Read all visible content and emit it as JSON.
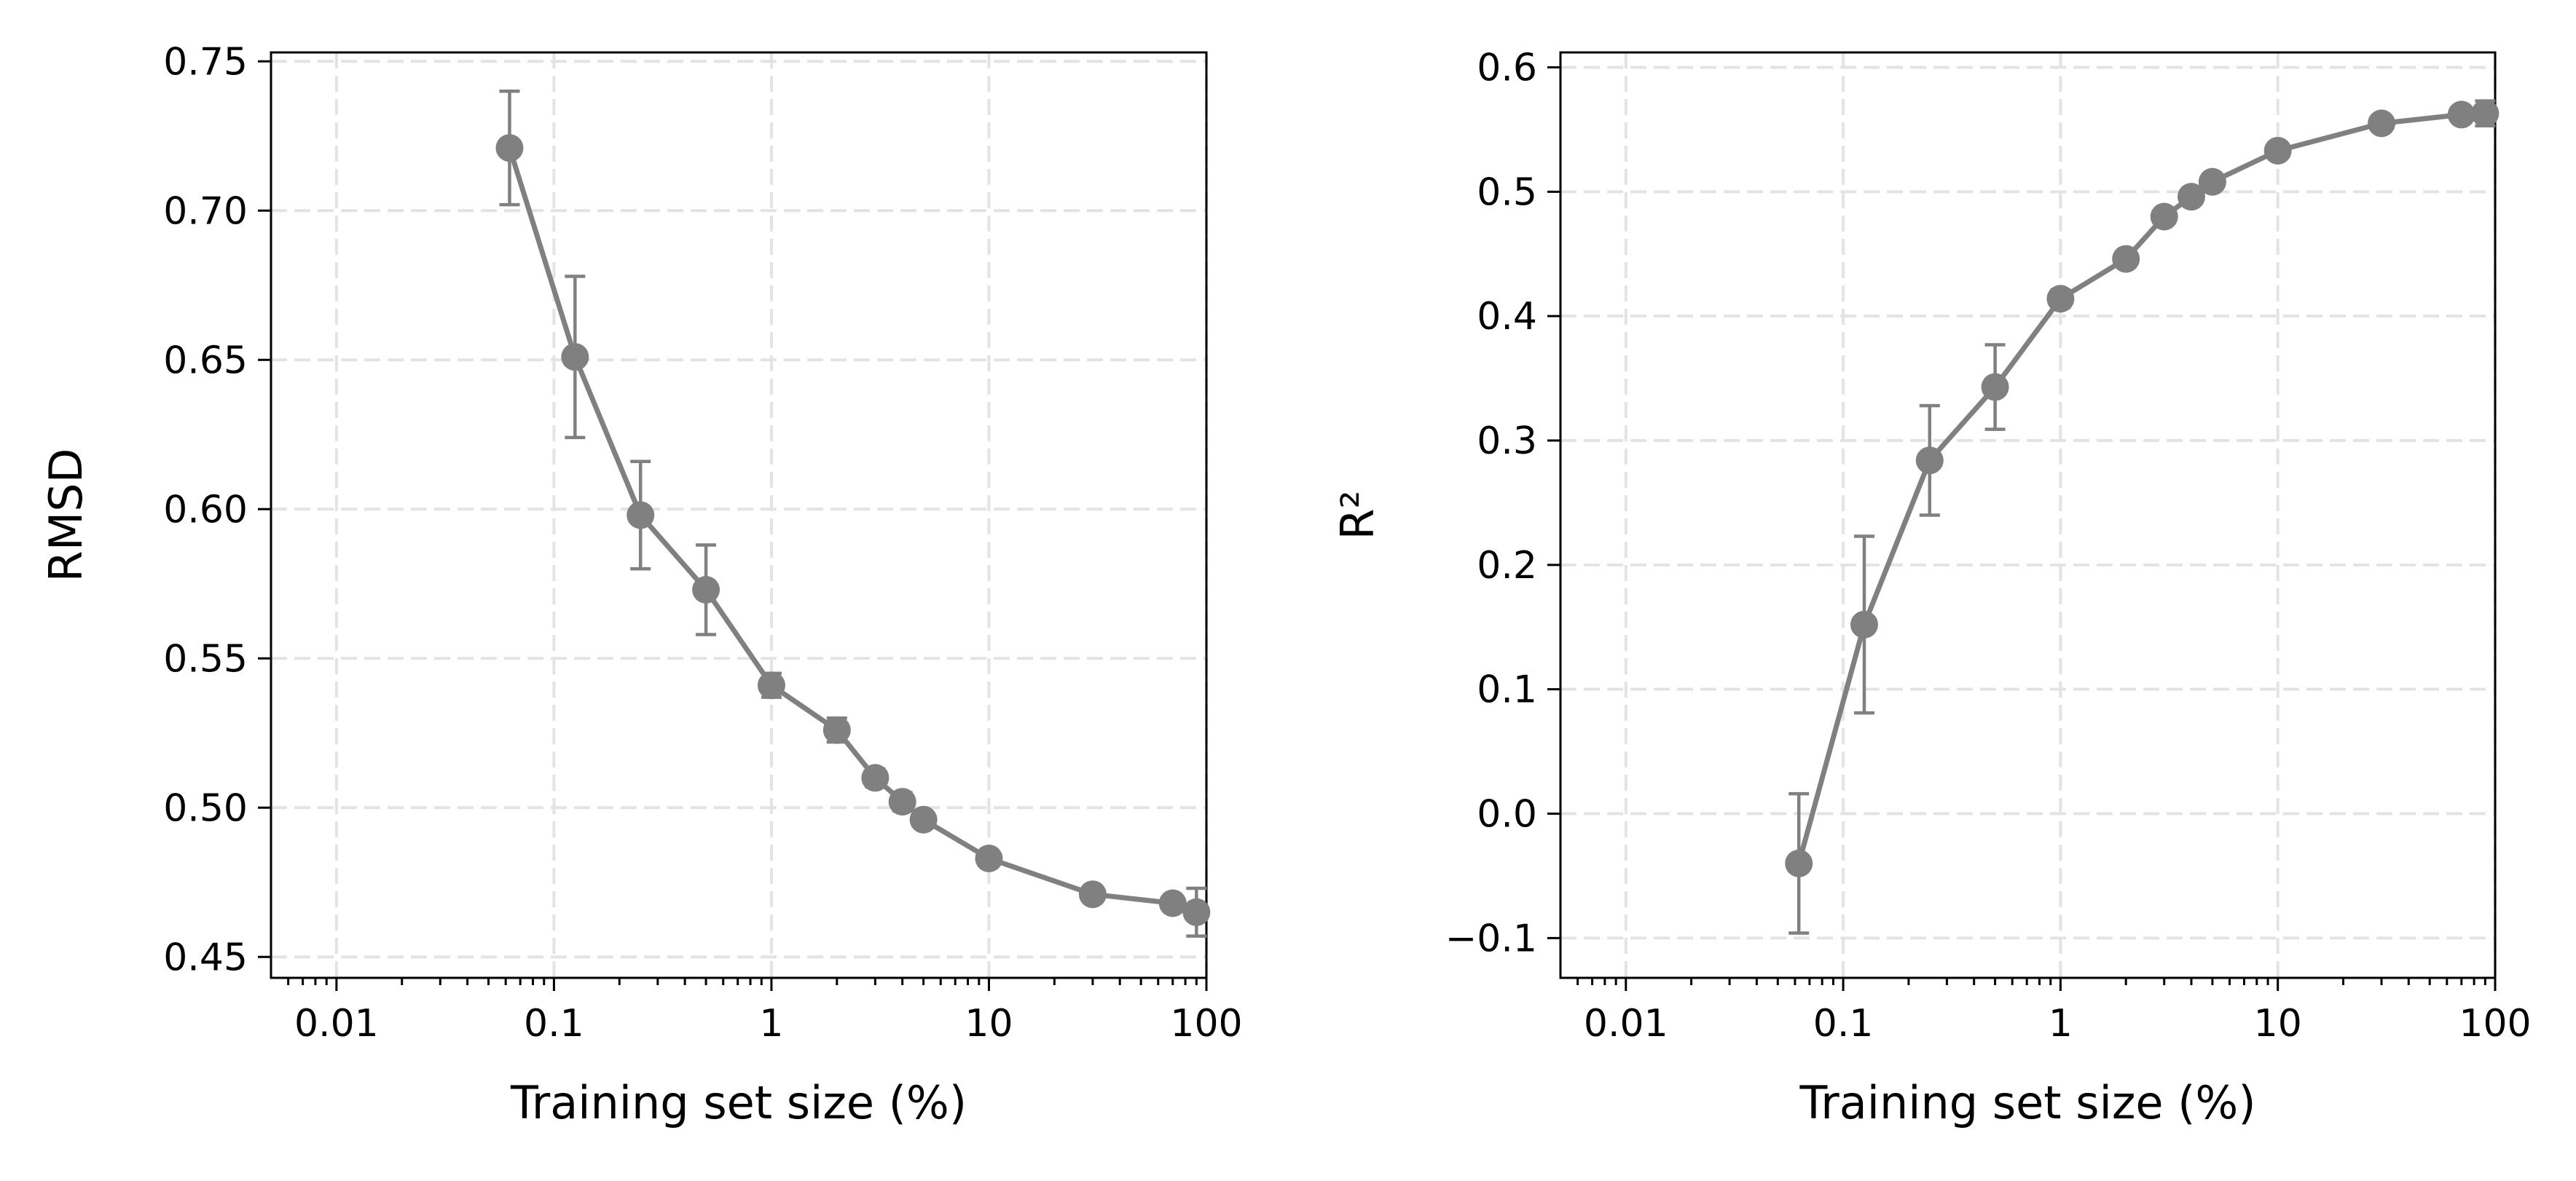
{
  "chart_data": [
    {
      "type": "line",
      "xlabel": "Training set size (%)",
      "ylabel": "RMSD",
      "xscale": "log",
      "xlim": [
        0.005,
        100
      ],
      "ylim": [
        0.443,
        0.753
      ],
      "xticks": [
        0.01,
        0.1,
        1,
        10,
        100
      ],
      "xtick_labels": [
        "0.01",
        "0.1",
        "1",
        "10",
        "100"
      ],
      "yticks": [
        0.45,
        0.5,
        0.55,
        0.6,
        0.65,
        0.7,
        0.75
      ],
      "ytick_labels": [
        "0.45",
        "0.50",
        "0.55",
        "0.60",
        "0.65",
        "0.70",
        "0.75"
      ],
      "grid": true,
      "color": "#808080",
      "series": [
        {
          "x": [
            0.0625,
            0.125,
            0.25,
            0.5,
            1,
            2,
            3,
            4,
            5,
            10,
            30,
            70,
            90
          ],
          "y": [
            0.721,
            0.651,
            0.598,
            0.573,
            0.541,
            0.526,
            0.51,
            0.502,
            0.496,
            0.483,
            0.471,
            0.468,
            0.465
          ],
          "err": [
            0.019,
            0.027,
            0.018,
            0.015,
            0.004,
            0.004,
            0.003,
            0.003,
            0.002,
            0.002,
            0.002,
            0.002,
            0.008
          ]
        }
      ]
    },
    {
      "type": "line",
      "xlabel": "Training set size (%)",
      "ylabel": "R²",
      "xscale": "log",
      "xlim": [
        0.005,
        100
      ],
      "ylim": [
        -0.132,
        0.612
      ],
      "xticks": [
        0.01,
        0.1,
        1,
        10,
        100
      ],
      "xtick_labels": [
        "0.01",
        "0.1",
        "1",
        "10",
        "100"
      ],
      "yticks": [
        -0.1,
        0.0,
        0.1,
        0.2,
        0.3,
        0.4,
        0.5,
        0.6
      ],
      "ytick_labels": [
        "−0.1",
        "0.0",
        "0.1",
        "0.2",
        "0.3",
        "0.4",
        "0.5",
        "0.6"
      ],
      "grid": true,
      "color": "#808080",
      "series": [
        {
          "x": [
            0.0625,
            0.125,
            0.25,
            0.5,
            1,
            2,
            3,
            4,
            5,
            10,
            30,
            70,
            90
          ],
          "y": [
            -0.04,
            0.152,
            0.284,
            0.343,
            0.414,
            0.446,
            0.48,
            0.496,
            0.508,
            0.533,
            0.555,
            0.562,
            0.563
          ],
          "err": [
            0.056,
            0.071,
            0.044,
            0.034,
            0.007,
            0.006,
            0.004,
            0.004,
            0.003,
            0.003,
            0.003,
            0.003,
            0.01
          ]
        }
      ]
    }
  ]
}
